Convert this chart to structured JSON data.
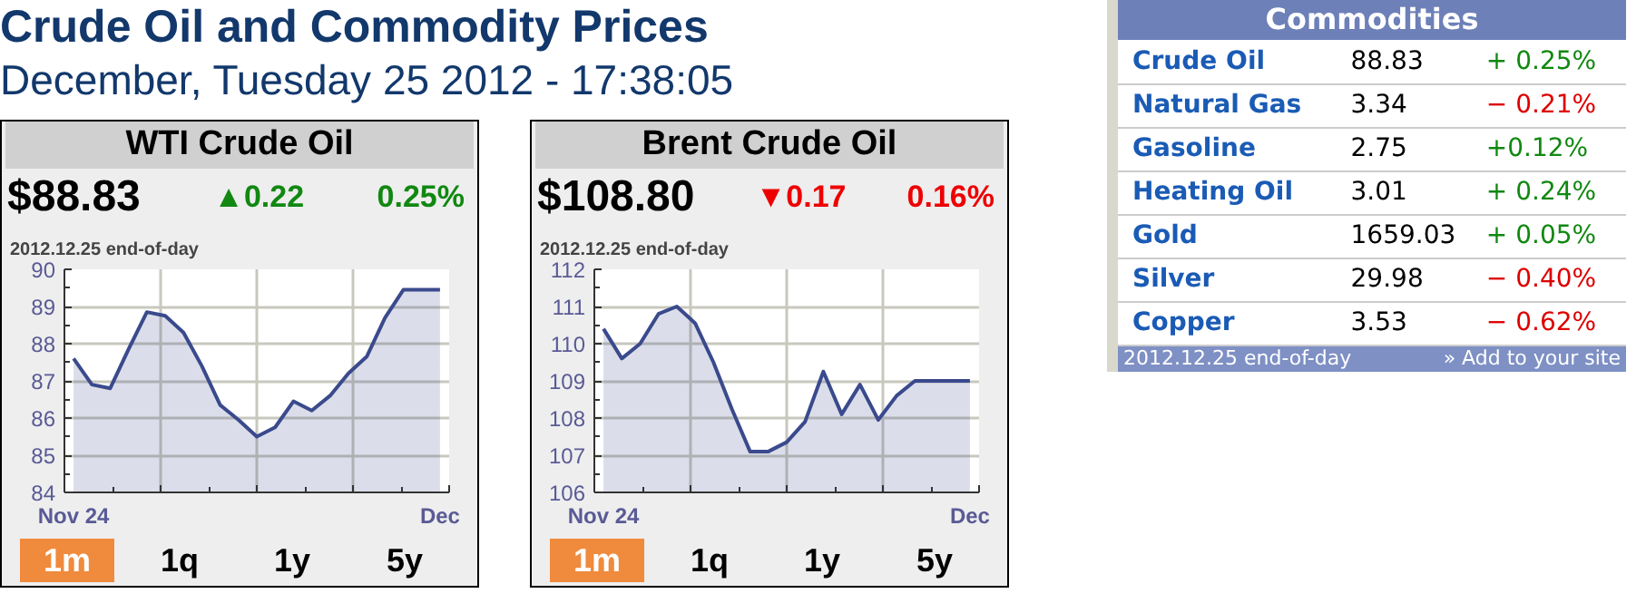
{
  "chart_data": [
    {
      "type": "other",
      "title": "Crude Oil and Commodity Prices",
      "subtitle": "December, Tuesday 25 2012 - 17:38:05"
    },
    {
      "type": "area",
      "title": "WTI Crude Oil",
      "subtitle": "2012.12.25 end-of-day",
      "annotations": [
        "$88.83",
        "▲0.22",
        "0.25%",
        "1m",
        "1q",
        "1y",
        "5y"
      ],
      "categories": [
        "Nov 24",
        null,
        null,
        null,
        null,
        null,
        null,
        null,
        null,
        null,
        null,
        null,
        null,
        null,
        null,
        null,
        null,
        null,
        null,
        null,
        "Dec"
      ],
      "series": [
        {
          "color": "#3a4a8c",
          "values": [
            87.6,
            86.9,
            86.8,
            87.85,
            88.85,
            88.75,
            88.3,
            87.4,
            86.35,
            85.95,
            85.5,
            85.75,
            86.45,
            86.2,
            86.6,
            87.2,
            87.65,
            88.7,
            89.45,
            89.45,
            89.45
          ]
        }
      ],
      "ylim": [
        84,
        90
      ],
      "yticks": [
        84,
        85,
        86,
        87,
        88,
        89,
        90
      ],
      "grid": true
    },
    {
      "type": "area",
      "title": "Brent Crude Oil",
      "subtitle": "2012.12.25 end-of-day",
      "annotations": [
        "$108.80",
        "▼0.17",
        "0.16%",
        "1m",
        "1q",
        "1y",
        "5y"
      ],
      "categories": [
        "Nov 24",
        null,
        null,
        null,
        null,
        null,
        null,
        null,
        null,
        null,
        null,
        null,
        null,
        null,
        null,
        null,
        null,
        null,
        null,
        null,
        "Dec"
      ],
      "series": [
        {
          "color": "#3a4a8c",
          "values": [
            110.4,
            109.6,
            110.0,
            110.8,
            111.0,
            110.55,
            109.5,
            108.25,
            107.1,
            107.1,
            107.35,
            107.9,
            109.25,
            108.1,
            108.9,
            107.95,
            108.6,
            109.0,
            109.0,
            109.0,
            109.0
          ]
        }
      ],
      "ylim": [
        106,
        112
      ],
      "yticks": [
        106,
        107,
        108,
        109,
        110,
        111,
        112
      ],
      "grid": true
    },
    {
      "type": "other",
      "title": "Commodities",
      "categories": [
        "Crude Oil",
        "Natural Gas",
        "Gasoline",
        "Heating Oil",
        "Gold",
        "Silver",
        "Copper"
      ],
      "values": [
        88.83,
        3.34,
        2.75,
        3.01,
        1659.03,
        29.98,
        3.53
      ],
      "data_labels": true,
      "annotations": [
        "+ 0.25%",
        "− 0.21%",
        "+0.12%",
        "+ 0.24%",
        "+ 0.05%",
        "− 0.40%",
        "− 0.62%",
        "2012.12.25 end-of-day",
        "» Add to your site"
      ]
    }
  ]
}
